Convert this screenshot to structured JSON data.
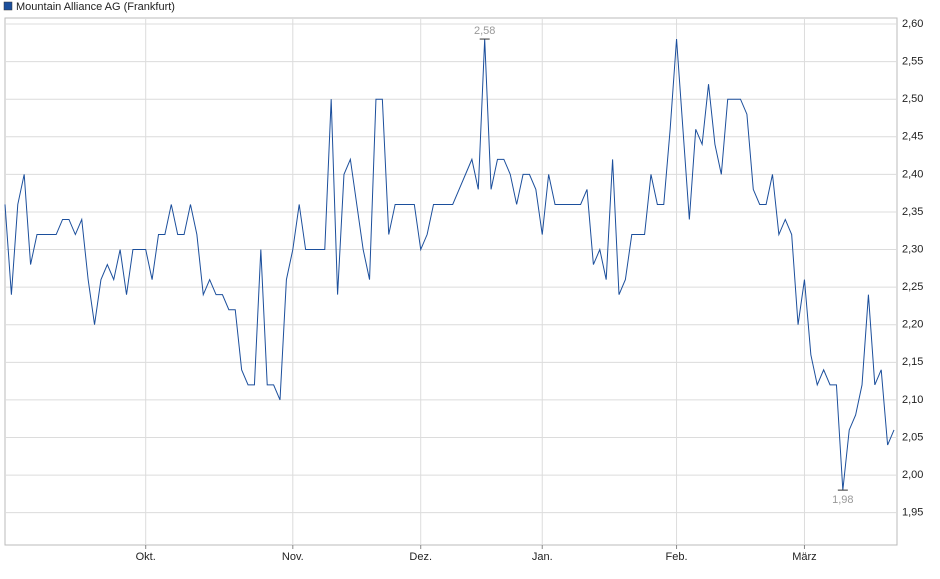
{
  "chart_data": {
    "type": "line",
    "series": [
      {
        "name": "Mountain Alliance AG (Frankfurt)",
        "color": "#1c4f9c",
        "values": [
          2.36,
          2.24,
          2.36,
          2.4,
          2.28,
          2.32,
          2.32,
          2.32,
          2.32,
          2.34,
          2.34,
          2.32,
          2.34,
          2.26,
          2.2,
          2.26,
          2.28,
          2.26,
          2.3,
          2.24,
          2.3,
          2.3,
          2.3,
          2.26,
          2.32,
          2.32,
          2.36,
          2.32,
          2.32,
          2.36,
          2.32,
          2.24,
          2.26,
          2.24,
          2.24,
          2.22,
          2.22,
          2.14,
          2.12,
          2.12,
          2.3,
          2.12,
          2.12,
          2.1,
          2.26,
          2.3,
          2.36,
          2.3,
          2.3,
          2.3,
          2.3,
          2.5,
          2.24,
          2.4,
          2.42,
          2.36,
          2.3,
          2.26,
          2.5,
          2.5,
          2.32,
          2.36,
          2.36,
          2.36,
          2.36,
          2.3,
          2.32,
          2.36,
          2.36,
          2.36,
          2.36,
          2.38,
          2.4,
          2.42,
          2.38,
          2.58,
          2.38,
          2.42,
          2.42,
          2.4,
          2.36,
          2.4,
          2.4,
          2.38,
          2.32,
          2.4,
          2.36,
          2.36,
          2.36,
          2.36,
          2.36,
          2.38,
          2.28,
          2.3,
          2.26,
          2.42,
          2.24,
          2.26,
          2.32,
          2.32,
          2.32,
          2.4,
          2.36,
          2.36,
          2.46,
          2.58,
          2.46,
          2.34,
          2.46,
          2.44,
          2.52,
          2.44,
          2.4,
          2.5,
          2.5,
          2.5,
          2.48,
          2.38,
          2.36,
          2.36,
          2.4,
          2.32,
          2.34,
          2.32,
          2.2,
          2.26,
          2.16,
          2.12,
          2.14,
          2.12,
          2.12,
          1.98,
          2.06,
          2.08,
          2.12,
          2.24,
          2.12,
          2.14,
          2.04,
          2.06
        ]
      }
    ],
    "categories": [
      null,
      null,
      null,
      null,
      null,
      null,
      null,
      null,
      null,
      null,
      null,
      null,
      null,
      null,
      null,
      null,
      null,
      null,
      null,
      null,
      null,
      null,
      "Okt.",
      null,
      null,
      null,
      null,
      null,
      null,
      null,
      null,
      null,
      null,
      null,
      null,
      null,
      null,
      null,
      null,
      null,
      null,
      null,
      null,
      null,
      null,
      "Nov.",
      null,
      null,
      null,
      null,
      null,
      null,
      null,
      null,
      null,
      null,
      null,
      null,
      null,
      null,
      null,
      null,
      null,
      null,
      null,
      "Dez.",
      null,
      null,
      null,
      null,
      null,
      null,
      null,
      null,
      null,
      null,
      null,
      null,
      null,
      null,
      null,
      null,
      null,
      null,
      "Jan.",
      null,
      null,
      null,
      null,
      null,
      null,
      null,
      null,
      null,
      null,
      null,
      null,
      null,
      null,
      null,
      null,
      null,
      null,
      null,
      null,
      "Feb.",
      null,
      null,
      null,
      null,
      null,
      null,
      null,
      null,
      null,
      null,
      null,
      null,
      null,
      null,
      null,
      null,
      null,
      null,
      null,
      "März",
      null,
      null,
      null,
      null,
      null,
      null,
      null,
      null,
      null,
      null,
      null,
      null,
      null,
      null
    ],
    "ylim": [
      1.907,
      2.608
    ],
    "yticks": [
      {
        "value": 1.95,
        "label": "1,95"
      },
      {
        "value": 2.0,
        "label": "2,00"
      },
      {
        "value": 2.05,
        "label": "2,05"
      },
      {
        "value": 2.1,
        "label": "2,10"
      },
      {
        "value": 2.15,
        "label": "2,15"
      },
      {
        "value": 2.2,
        "label": "2,20"
      },
      {
        "value": 2.25,
        "label": "2,25"
      },
      {
        "value": 2.3,
        "label": "2,30"
      },
      {
        "value": 2.35,
        "label": "2,35"
      },
      {
        "value": 2.4,
        "label": "2,40"
      },
      {
        "value": 2.45,
        "label": "2,45"
      },
      {
        "value": 2.5,
        "label": "2,50"
      },
      {
        "value": 2.55,
        "label": "2,55"
      },
      {
        "value": 2.6,
        "label": "2,60"
      }
    ],
    "annotations": [
      {
        "label": "2,58",
        "value": 2.58
      },
      {
        "label": "1,98",
        "value": 1.98
      }
    ],
    "grid": true,
    "legend": "top-left"
  }
}
